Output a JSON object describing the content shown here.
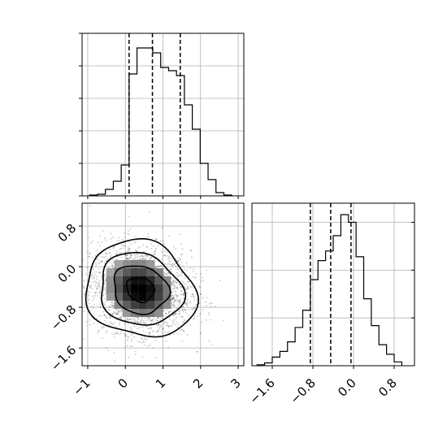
{
  "chart_data": {
    "type": "corner",
    "panels": [
      {
        "type": "histogram",
        "variable": 0,
        "xlim": [
          -1.15,
          3.15
        ],
        "bin_edges": [
          -0.95,
          -0.74,
          -0.53,
          -0.32,
          -0.11,
          0.1,
          0.31,
          0.52,
          0.73,
          0.94,
          1.15,
          1.36,
          1.57,
          1.78,
          1.99,
          2.2,
          2.41,
          2.62,
          2.83
        ],
        "values": [
          1,
          2,
          8,
          18,
          38,
          150,
          182,
          182,
          176,
          158,
          154,
          148,
          112,
          82,
          40,
          20,
          4,
          1
        ],
        "ylim": [
          0,
          200
        ],
        "quantiles": [
          0.1,
          0.72,
          1.46
        ],
        "y_tick_labels": []
      },
      {
        "type": "hist2d",
        "x_variable": 0,
        "y_variable": 1,
        "xlim": [
          -1.15,
          3.15
        ],
        "ylim": [
          -1.95,
          1.25
        ],
        "x_ticks": [
          -1,
          0,
          1,
          2,
          3
        ],
        "x_tick_labels": [
          "−1",
          "0",
          "1",
          "2",
          "3"
        ],
        "y_ticks": [
          -1.6,
          -0.8,
          0.0,
          0.8
        ],
        "y_tick_labels": [
          "−1.6",
          "−0.8",
          "0.0",
          "0.8"
        ],
        "density_center": [
          0.4,
          -0.45
        ],
        "density_sigma": [
          0.62,
          0.4
        ],
        "contour_levels_sigma": [
          0.5,
          1.0,
          1.5,
          2.0
        ]
      },
      {
        "type": "histogram",
        "variable": 1,
        "xlim": [
          -2.0,
          1.2
        ],
        "bin_edges": [
          -1.9,
          -1.75,
          -1.6,
          -1.45,
          -1.3,
          -1.15,
          -1.0,
          -0.85,
          -0.7,
          -0.55,
          -0.4,
          -0.25,
          -0.1,
          0.05,
          0.2,
          0.35,
          0.5,
          0.65,
          0.8,
          0.95
        ],
        "values": [
          1,
          3,
          9,
          15,
          25,
          40,
          58,
          90,
          110,
          120,
          136,
          158,
          150,
          114,
          70,
          42,
          22,
          12,
          4
        ],
        "ylim": [
          0,
          170
        ],
        "quantiles": [
          -0.85,
          -0.45,
          -0.05
        ],
        "x_ticks": [
          -1.6,
          -0.8,
          0.0,
          0.8
        ],
        "x_tick_labels": [
          "−1.6",
          "−0.8",
          "0.0",
          "0.8"
        ],
        "y_tick_labels": []
      }
    ],
    "colors": {
      "line": "#000000",
      "grid": "#b0b0b0",
      "frame": "#000000",
      "background": "#ffffff"
    }
  }
}
